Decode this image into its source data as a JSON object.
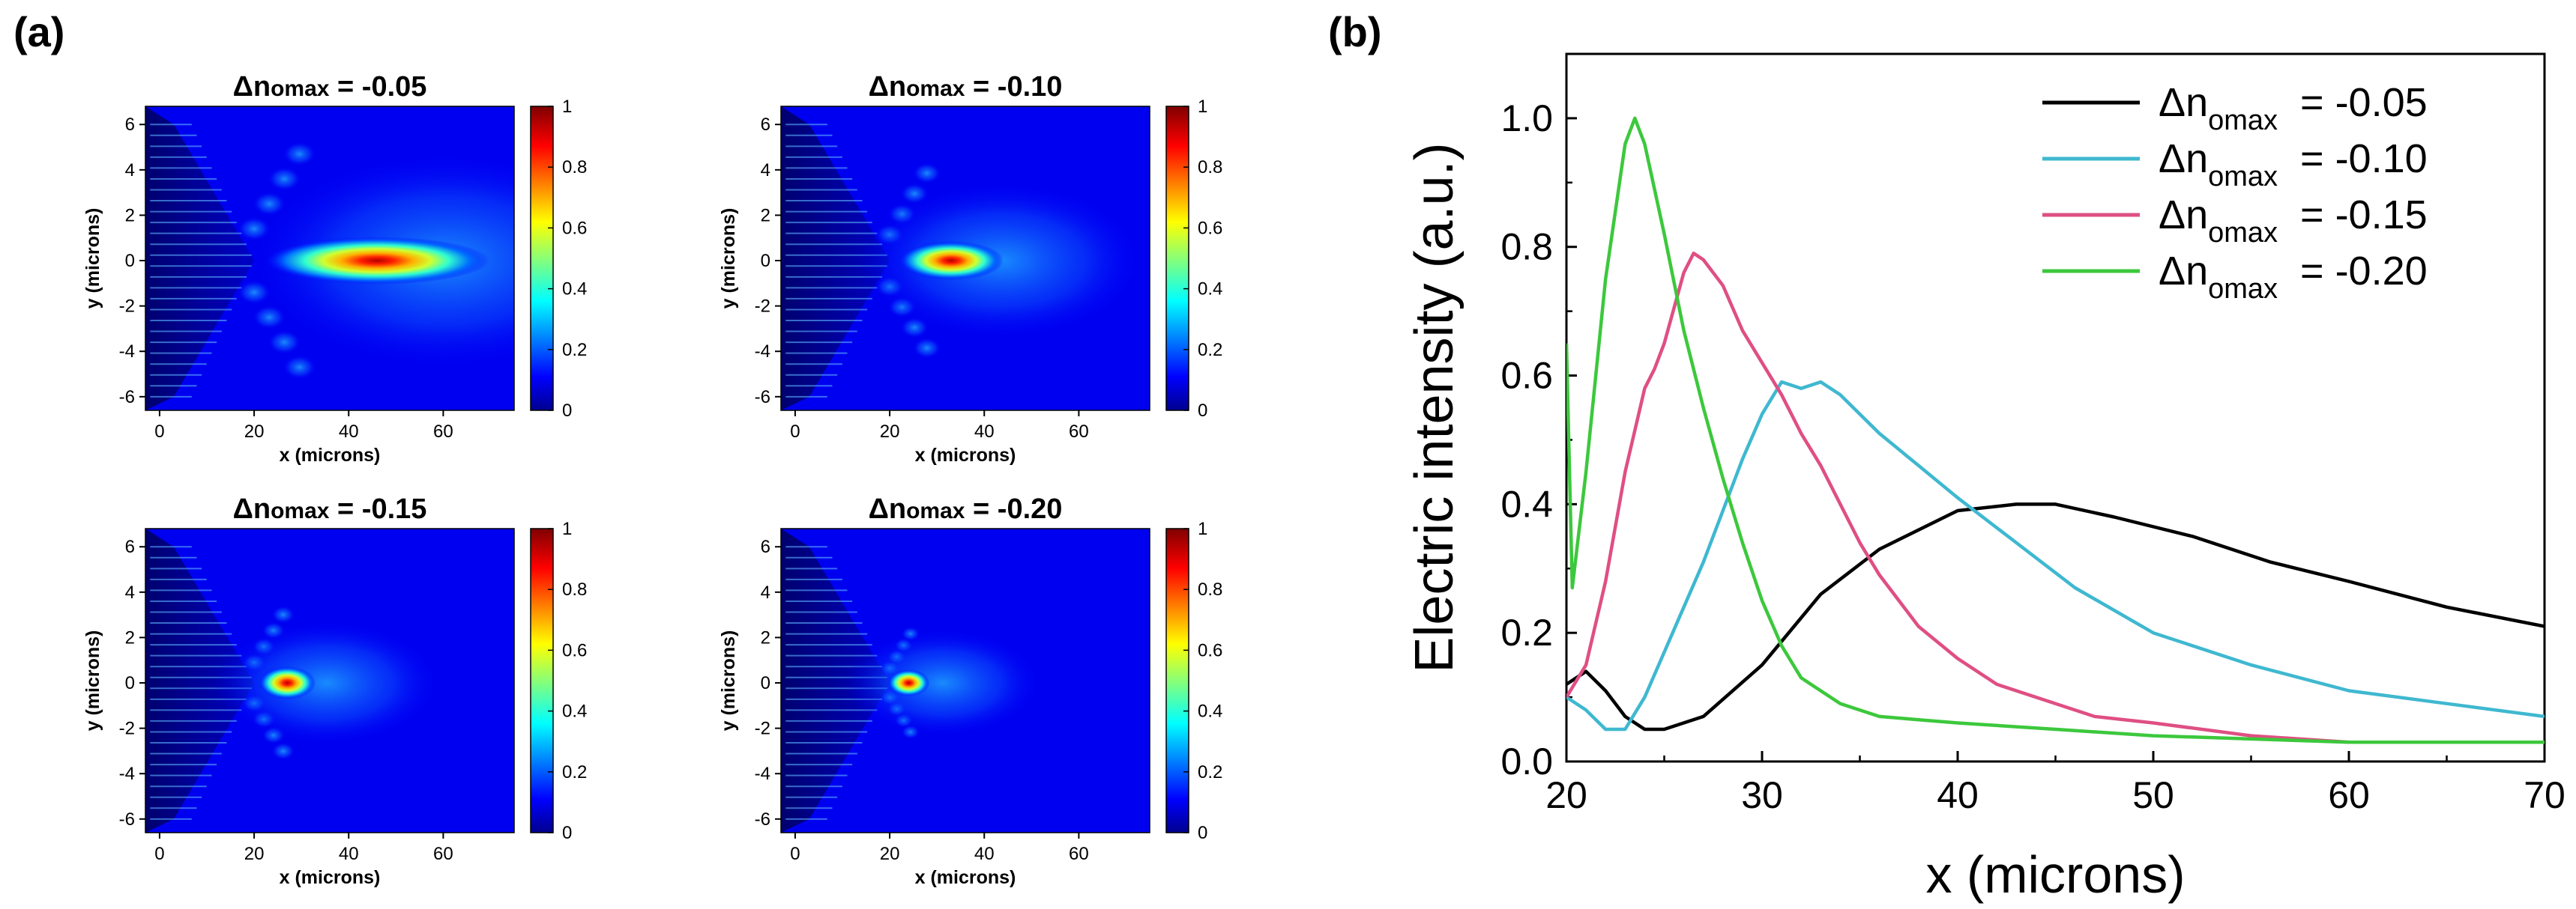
{
  "panel_a": {
    "label": "(a)",
    "x_ticks": [
      "0",
      "20",
      "40",
      "60"
    ],
    "y_ticks": [
      "6",
      "4",
      "2",
      "0",
      "-2",
      "-4",
      "-6"
    ],
    "cb_ticks": [
      "1",
      "0.8",
      "0.6",
      "0.4",
      "0.2",
      "0"
    ],
    "xlabel": "x (microns)",
    "ylabel": "y (microns)",
    "title_prefix": "Δn",
    "title_sub": "omax",
    "maps": [
      {
        "value": "= -0.05",
        "label_tail": " = -0.05"
      },
      {
        "value": "= -0.10",
        "label_tail": " = -0.10"
      },
      {
        "value": "= -0.15",
        "label_tail": " = -0.15"
      },
      {
        "value": "= -0.20",
        "label_tail": " = -0.20"
      }
    ]
  },
  "panel_b": {
    "label": "(b)"
  },
  "chart_data": [
    {
      "type": "heatmap",
      "panel": "(a)",
      "title": "Δnomax = -0.05",
      "xlabel": "x (microns)",
      "ylabel": "y (microns)",
      "xlim": [
        -3,
        75
      ],
      "ylim": [
        -6.6,
        6.8
      ],
      "colorbar_range": [
        0,
        1
      ],
      "peak_location": {
        "x": 46,
        "y": 0
      },
      "peak_value": 1
    },
    {
      "type": "heatmap",
      "panel": "(a)",
      "title": "Δnomax = -0.10",
      "xlabel": "x (microns)",
      "ylabel": "y (microns)",
      "xlim": [
        -3,
        75
      ],
      "ylim": [
        -6.6,
        6.8
      ],
      "colorbar_range": [
        0,
        1
      ],
      "peak_location": {
        "x": 33,
        "y": 0
      },
      "peak_value": 1
    },
    {
      "type": "heatmap",
      "panel": "(a)",
      "title": "Δnomax = -0.15",
      "xlabel": "x (microns)",
      "ylabel": "y (microns)",
      "xlim": [
        -3,
        75
      ],
      "ylim": [
        -6.6,
        6.8
      ],
      "colorbar_range": [
        0,
        1
      ],
      "peak_location": {
        "x": 27,
        "y": 0
      },
      "peak_value": 1
    },
    {
      "type": "heatmap",
      "panel": "(a)",
      "title": "Δnomax = -0.20",
      "xlabel": "x (microns)",
      "ylabel": "y (microns)",
      "xlim": [
        -3,
        75
      ],
      "ylim": [
        -6.6,
        6.8
      ],
      "colorbar_range": [
        0,
        1
      ],
      "peak_location": {
        "x": 24,
        "y": 0
      },
      "peak_value": 1
    },
    {
      "type": "line",
      "panel": "(b)",
      "title": "",
      "xlabel": "x (microns)",
      "ylabel": "Electric intensity (a.u.)",
      "xlim": [
        20,
        70
      ],
      "ylim": [
        0.0,
        1.1
      ],
      "xticks": [
        20,
        30,
        40,
        50,
        60,
        70
      ],
      "yticks": [
        0.0,
        0.2,
        0.4,
        0.6,
        0.8,
        1.0
      ],
      "ytick_labels": [
        "0.0",
        "0.2",
        "0.4",
        "0.6",
        "0.8",
        "1.0"
      ],
      "legend_position": "top-right",
      "series": [
        {
          "name": "Δnomax = -0.05",
          "legend_sub": "omax",
          "legend_value": "= -0.05",
          "color": "#000000",
          "x": [
            20,
            20.5,
            21,
            22,
            23,
            24,
            25,
            27,
            30,
            33,
            36,
            40,
            43,
            45,
            48,
            52,
            56,
            60,
            65,
            70
          ],
          "y": [
            0.12,
            0.13,
            0.14,
            0.11,
            0.07,
            0.05,
            0.05,
            0.07,
            0.15,
            0.26,
            0.33,
            0.39,
            0.4,
            0.4,
            0.38,
            0.35,
            0.31,
            0.28,
            0.24,
            0.21
          ]
        },
        {
          "name": "Δnomax = -0.10",
          "legend_sub": "omax",
          "legend_value": "= -0.10",
          "color": "#3fb8d0",
          "x": [
            20,
            21,
            22,
            23,
            24,
            25,
            26,
            27,
            28,
            29,
            30,
            31,
            32,
            33,
            34,
            35,
            36,
            38,
            40,
            43,
            46,
            50,
            55,
            60,
            65,
            70
          ],
          "y": [
            0.1,
            0.08,
            0.05,
            0.05,
            0.1,
            0.17,
            0.24,
            0.31,
            0.39,
            0.47,
            0.54,
            0.59,
            0.58,
            0.59,
            0.57,
            0.54,
            0.51,
            0.46,
            0.41,
            0.34,
            0.27,
            0.2,
            0.15,
            0.11,
            0.09,
            0.07
          ]
        },
        {
          "name": "Δnomax = -0.15",
          "legend_sub": "omax",
          "legend_value": "= -0.15",
          "color": "#df4f83",
          "x": [
            20,
            21,
            22,
            23,
            24,
            24.5,
            25,
            26,
            26.5,
            27,
            28,
            29,
            30,
            31,
            32,
            33,
            34,
            35,
            36,
            38,
            40,
            42,
            44,
            47,
            50,
            55,
            60,
            65,
            70
          ],
          "y": [
            0.1,
            0.15,
            0.28,
            0.45,
            0.58,
            0.61,
            0.65,
            0.76,
            0.79,
            0.78,
            0.74,
            0.67,
            0.62,
            0.57,
            0.51,
            0.46,
            0.4,
            0.34,
            0.29,
            0.21,
            0.16,
            0.12,
            0.1,
            0.07,
            0.06,
            0.04,
            0.03,
            0.03,
            0.03
          ]
        },
        {
          "name": "Δnomax = -0.20",
          "legend_sub": "omax",
          "legend_value": "= -0.20",
          "color": "#3cc83c",
          "x": [
            20,
            20.3,
            21,
            22,
            23,
            23.5,
            24,
            25,
            26,
            27,
            28,
            29,
            30,
            31,
            32,
            34,
            36,
            38,
            40,
            45,
            50,
            55,
            60,
            65,
            70
          ],
          "y": [
            0.65,
            0.27,
            0.45,
            0.75,
            0.96,
            1.0,
            0.96,
            0.82,
            0.67,
            0.55,
            0.44,
            0.34,
            0.25,
            0.18,
            0.13,
            0.09,
            0.07,
            0.065,
            0.06,
            0.05,
            0.04,
            0.035,
            0.03,
            0.03,
            0.03
          ]
        }
      ]
    }
  ]
}
